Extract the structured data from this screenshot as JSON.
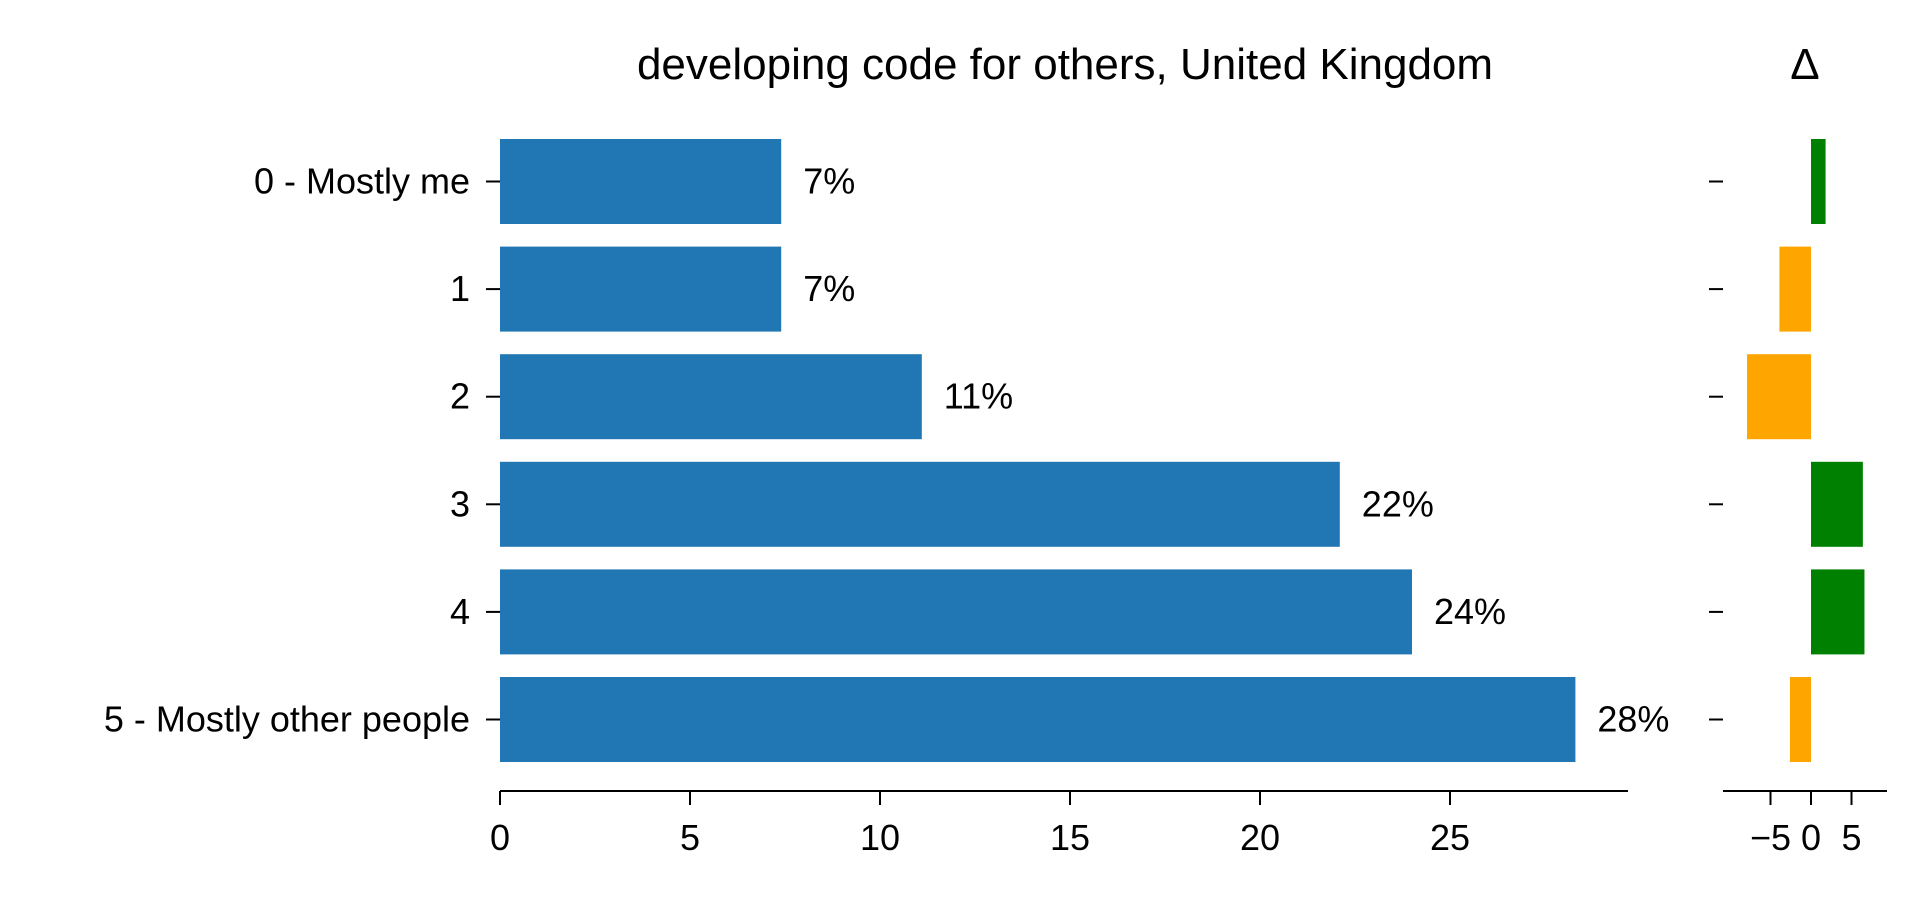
{
  "chart_data": [
    {
      "type": "bar",
      "orientation": "horizontal",
      "title": "developing code for others, United Kingdom",
      "categories": [
        "0 - Mostly me",
        "1",
        "2",
        "3",
        "4",
        "5 - Mostly other people"
      ],
      "values": [
        7.4,
        7.4,
        11.1,
        22.1,
        24.0,
        28.3
      ],
      "value_labels": [
        "7%",
        "7%",
        "11%",
        "22%",
        "24%",
        "28%"
      ],
      "xlim": [
        0,
        30
      ],
      "xticks": [
        0,
        5,
        10,
        15,
        20,
        25
      ],
      "xtick_labels": [
        "0",
        "5",
        "10",
        "15",
        "20",
        "25"
      ],
      "grid": false,
      "color": "#2077b4"
    },
    {
      "type": "bar",
      "orientation": "horizontal",
      "title": "Δ",
      "categories": [
        "0 - Mostly me",
        "1",
        "2",
        "3",
        "4",
        "5 - Mostly other people"
      ],
      "values": [
        1.8,
        -3.9,
        -7.9,
        6.4,
        6.6,
        -2.6
      ],
      "xlim": [
        -8,
        7
      ],
      "xticks": [
        -5,
        0,
        5
      ],
      "xtick_labels": [
        "−5",
        "0",
        "5"
      ],
      "grid": false,
      "positive_color": "#008000",
      "negative_color": "#ffa500"
    }
  ]
}
